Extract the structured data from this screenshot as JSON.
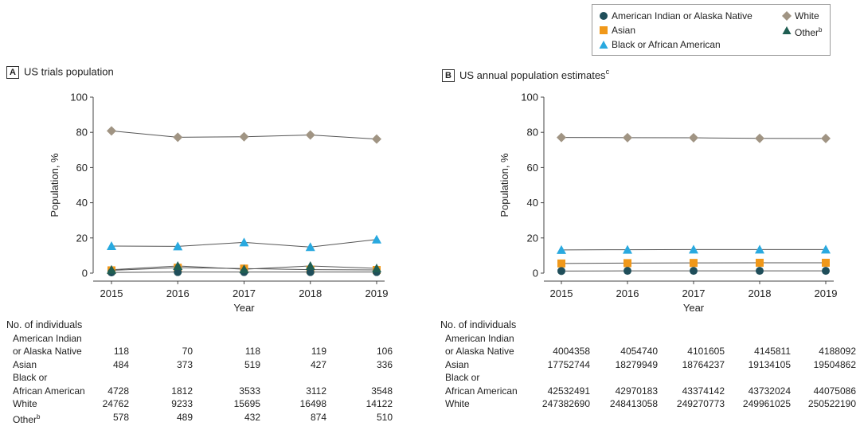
{
  "legend": {
    "items": [
      {
        "label": "American Indian or Alaska Native",
        "marker": "circle",
        "color": "#1f4e5a"
      },
      {
        "label": "White",
        "marker": "diamond",
        "color": "#a09483"
      },
      {
        "label": "Asian",
        "marker": "square",
        "color": "#f0981a"
      },
      {
        "label": "Other",
        "superscript": "b",
        "marker": "triangle",
        "color": "#1f5e52"
      },
      {
        "label": "Black or African American",
        "marker": "triangle",
        "color": "#29a9df"
      }
    ]
  },
  "chart_data": [
    {
      "type": "line",
      "panel_letter": "A",
      "title": "US trials population",
      "xlabel": "Year",
      "ylabel": "Population, %",
      "x": [
        "2015",
        "2016",
        "2017",
        "2018",
        "2019"
      ],
      "ylim": [
        0,
        100
      ],
      "yticks": [
        0,
        20,
        40,
        60,
        80,
        100
      ],
      "series": [
        {
          "name": "White",
          "values": [
            80.8,
            77.2,
            77.5,
            78.5,
            76.2
          ]
        },
        {
          "name": "Black or African American",
          "values": [
            15.4,
            15.2,
            17.5,
            14.8,
            19.1
          ]
        },
        {
          "name": "Asian",
          "values": [
            1.6,
            3.1,
            2.6,
            2.0,
            1.8
          ]
        },
        {
          "name": "American Indian or Alaska Native",
          "values": [
            0.4,
            0.6,
            0.6,
            0.6,
            0.6
          ]
        },
        {
          "name": "Other",
          "values": [
            1.9,
            4.1,
            2.2,
            4.1,
            2.7
          ]
        }
      ]
    },
    {
      "type": "line",
      "panel_letter": "B",
      "title": "US annual population estimates",
      "title_superscript": "c",
      "xlabel": "Year",
      "ylabel": "Population, %",
      "x": [
        "2015",
        "2016",
        "2017",
        "2018",
        "2019"
      ],
      "ylim": [
        0,
        100
      ],
      "yticks": [
        0,
        20,
        40,
        60,
        80,
        100
      ],
      "series": [
        {
          "name": "White",
          "values": [
            77.1,
            77.0,
            76.9,
            76.6,
            76.5
          ]
        },
        {
          "name": "Black or African American",
          "values": [
            13.2,
            13.3,
            13.4,
            13.4,
            13.4
          ]
        },
        {
          "name": "Asian",
          "values": [
            5.5,
            5.7,
            5.8,
            5.9,
            5.9
          ]
        },
        {
          "name": "American Indian or Alaska Native",
          "values": [
            1.2,
            1.3,
            1.3,
            1.3,
            1.3
          ]
        }
      ]
    }
  ],
  "tables": [
    {
      "heading": "No. of individuals",
      "rows": [
        {
          "label_lines": [
            "American Indian",
            "or Alaska Native"
          ],
          "values": [
            "118",
            "70",
            "118",
            "119",
            "106"
          ]
        },
        {
          "label_lines": [
            "Asian"
          ],
          "values": [
            "484",
            "373",
            "519",
            "427",
            "336"
          ]
        },
        {
          "label_lines": [
            "Black or",
            "African American"
          ],
          "values": [
            "4728",
            "1812",
            "3533",
            "3112",
            "3548"
          ]
        },
        {
          "label_lines": [
            "White"
          ],
          "values": [
            "24762",
            "9233",
            "15695",
            "16498",
            "14122"
          ]
        },
        {
          "label_lines": [
            "Other"
          ],
          "label_superscript": "b",
          "values": [
            "578",
            "489",
            "432",
            "874",
            "510"
          ]
        }
      ]
    },
    {
      "heading": "No. of individuals",
      "rows": [
        {
          "label_lines": [
            "American Indian",
            "or Alaska Native"
          ],
          "values": [
            "4004358",
            "4054740",
            "4101605",
            "4145811",
            "4188092"
          ]
        },
        {
          "label_lines": [
            "Asian"
          ],
          "values": [
            "17752744",
            "18279949",
            "18764237",
            "19134105",
            "19504862"
          ]
        },
        {
          "label_lines": [
            "Black or",
            "African American"
          ],
          "values": [
            "42532491",
            "42970183",
            "43374142",
            "43732024",
            "44075086"
          ]
        },
        {
          "label_lines": [
            "White"
          ],
          "values": [
            "247382690",
            "248413058",
            "249270773",
            "249961025",
            "250522190"
          ]
        }
      ]
    }
  ]
}
